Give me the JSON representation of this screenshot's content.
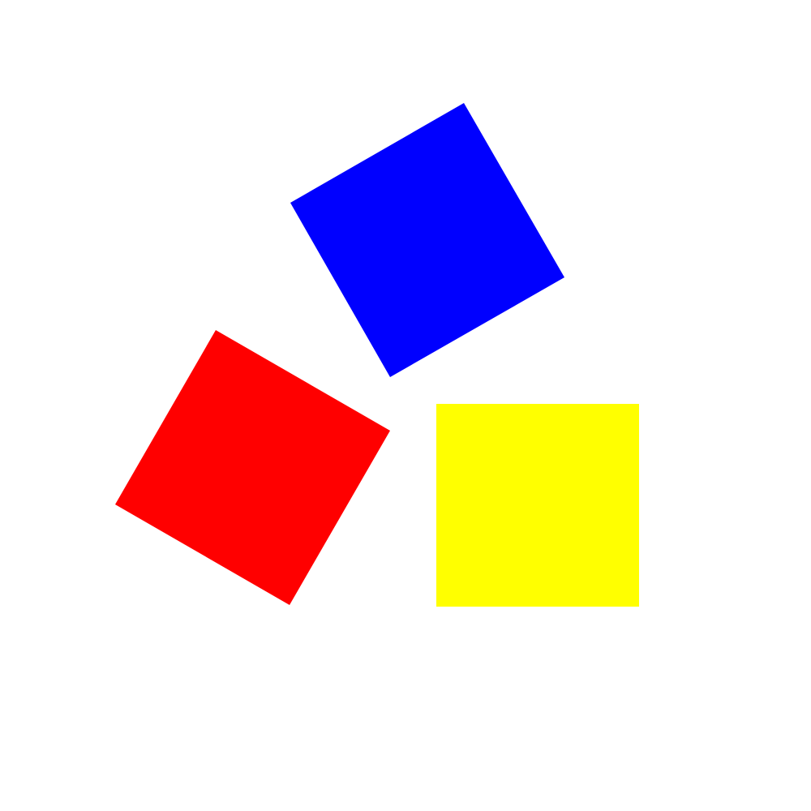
{
  "background": "#ffffff",
  "shapes": [
    {
      "name": "blue-square",
      "kind": "square",
      "color": "#0000ff",
      "rotation_deg": -30
    },
    {
      "name": "red-square",
      "kind": "square",
      "color": "#ff0000",
      "rotation_deg": 30
    },
    {
      "name": "yellow-square",
      "kind": "square",
      "color": "#ffff00",
      "rotation_deg": 0
    }
  ]
}
